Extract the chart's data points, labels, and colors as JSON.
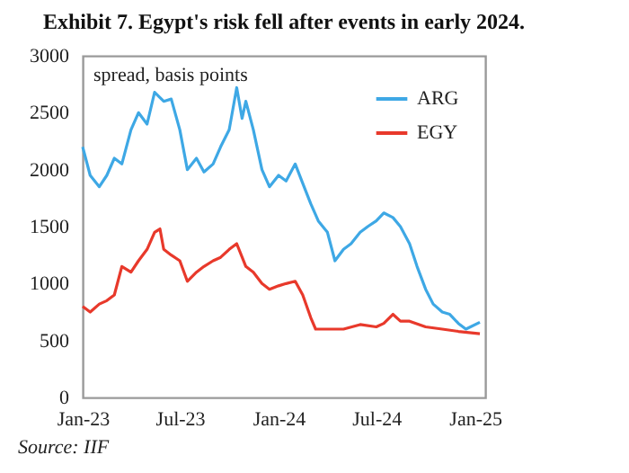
{
  "chart_data": {
    "type": "line",
    "title": "Exhibit 7. Egypt's risk fell after events in early 2024.",
    "annotations": [
      "spread, basis points",
      "Source: IIF"
    ],
    "xlim": [
      "2023-01-01",
      "2025-01-20"
    ],
    "xticks": [
      {
        "value": "2023-01-01",
        "label": "Jan-23"
      },
      {
        "value": "2023-07-01",
        "label": "Jul-23"
      },
      {
        "value": "2024-01-01",
        "label": "Jan-24"
      },
      {
        "value": "2024-07-01",
        "label": "Jul-24"
      },
      {
        "value": "2025-01-01",
        "label": "Jan-25"
      }
    ],
    "ylim": [
      0,
      3000
    ],
    "yticks": [
      0,
      500,
      1000,
      1500,
      2000,
      2500,
      3000
    ],
    "grid": false,
    "legend": "top right",
    "marker": "none",
    "line_style": "solid",
    "series": [
      {
        "name": "ARG",
        "color": "#3ea8e5",
        "x": [
          "2023-01-01",
          "2023-01-15",
          "2023-02-01",
          "2023-02-15",
          "2023-03-01",
          "2023-03-15",
          "2023-04-01",
          "2023-04-15",
          "2023-05-01",
          "2023-05-15",
          "2023-06-01",
          "2023-06-15",
          "2023-07-01",
          "2023-07-15",
          "2023-08-01",
          "2023-08-15",
          "2023-09-01",
          "2023-09-15",
          "2023-10-01",
          "2023-10-15",
          "2023-10-25",
          "2023-11-01",
          "2023-11-15",
          "2023-12-01",
          "2023-12-15",
          "2024-01-01",
          "2024-01-15",
          "2024-02-01",
          "2024-02-15",
          "2024-03-01",
          "2024-03-15",
          "2024-04-01",
          "2024-04-15",
          "2024-05-01",
          "2024-05-15",
          "2024-06-01",
          "2024-06-15",
          "2024-07-01",
          "2024-07-15",
          "2024-08-01",
          "2024-08-15",
          "2024-09-01",
          "2024-09-15",
          "2024-10-01",
          "2024-10-15",
          "2024-11-01",
          "2024-11-15",
          "2024-12-01",
          "2024-12-15",
          "2025-01-10"
        ],
        "values": [
          2200,
          1950,
          1850,
          1950,
          2100,
          2050,
          2350,
          2500,
          2400,
          2680,
          2600,
          2620,
          2350,
          2000,
          2100,
          1980,
          2050,
          2200,
          2350,
          2720,
          2450,
          2600,
          2350,
          2000,
          1850,
          1950,
          1900,
          2050,
          1880,
          1700,
          1550,
          1450,
          1200,
          1300,
          1350,
          1450,
          1500,
          1550,
          1620,
          1580,
          1500,
          1350,
          1150,
          950,
          820,
          750,
          730,
          650,
          600,
          660
        ]
      },
      {
        "name": "EGY",
        "color": "#e8392b",
        "x": [
          "2023-01-01",
          "2023-01-15",
          "2023-02-01",
          "2023-02-15",
          "2023-03-01",
          "2023-03-15",
          "2023-04-01",
          "2023-04-15",
          "2023-05-01",
          "2023-05-15",
          "2023-05-25",
          "2023-06-01",
          "2023-06-15",
          "2023-07-01",
          "2023-07-15",
          "2023-08-01",
          "2023-08-15",
          "2023-09-01",
          "2023-09-15",
          "2023-10-01",
          "2023-10-15",
          "2023-11-01",
          "2023-11-15",
          "2023-12-01",
          "2023-12-15",
          "2024-01-01",
          "2024-01-15",
          "2024-02-01",
          "2024-02-15",
          "2024-03-01",
          "2024-03-10",
          "2024-04-01",
          "2024-05-01",
          "2024-06-01",
          "2024-07-01",
          "2024-07-15",
          "2024-08-01",
          "2024-08-15",
          "2024-09-01",
          "2024-10-01",
          "2024-11-01",
          "2024-12-01",
          "2025-01-10"
        ],
        "values": [
          800,
          750,
          820,
          850,
          900,
          1150,
          1100,
          1200,
          1300,
          1450,
          1480,
          1300,
          1250,
          1200,
          1020,
          1100,
          1150,
          1200,
          1230,
          1300,
          1350,
          1150,
          1100,
          1000,
          950,
          980,
          1000,
          1020,
          900,
          700,
          600,
          600,
          600,
          640,
          620,
          650,
          730,
          670,
          670,
          620,
          600,
          580,
          560
        ]
      }
    ]
  }
}
